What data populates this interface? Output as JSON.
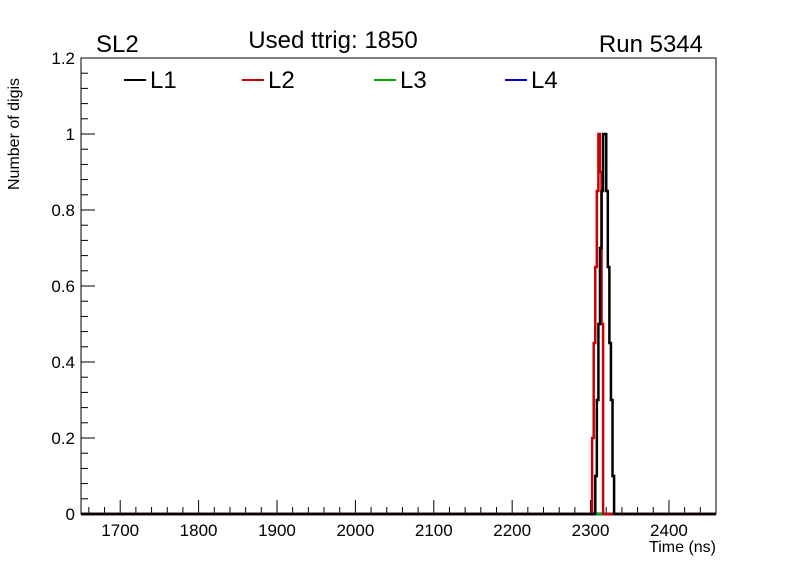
{
  "chart_data": {
    "type": "line",
    "title_left": "SL2",
    "title_center": "Used ttrig: 1850",
    "title_right": "Run 5344",
    "xlabel": "Time (ns)",
    "ylabel": "Number of digis",
    "xlim": [
      1650,
      2460
    ],
    "ylim": [
      0,
      1.2
    ],
    "xticks": [
      1700,
      1800,
      1900,
      2000,
      2100,
      2200,
      2300,
      2400
    ],
    "xtick_labels": [
      "1700",
      "1800",
      "1900",
      "2000",
      "2100",
      "2200",
      "2300",
      "2400"
    ],
    "yticks": [
      0,
      0.2,
      0.4,
      0.6,
      0.8,
      1,
      1.2
    ],
    "ytick_labels": [
      "0",
      "0.2",
      "0.4",
      "0.6",
      "0.8",
      "1",
      "1.2"
    ],
    "legend_position": "top-left",
    "series": [
      {
        "name": "L1",
        "color": "#000000",
        "x": [
          1650,
          2304,
          2306,
          2308,
          2310,
          2312,
          2314,
          2316,
          2318,
          2320,
          2322,
          2324,
          2326,
          2328,
          2330,
          2460
        ],
        "y": [
          0,
          0,
          0.1,
          0.3,
          0.5,
          0.7,
          0.85,
          1.0,
          1.0,
          0.85,
          0.65,
          0.45,
          0.3,
          0.1,
          0,
          0
        ]
      },
      {
        "name": "L2",
        "color": "#cc0000",
        "x": [
          1650,
          2300,
          2302,
          2304,
          2306,
          2308,
          2310,
          2312,
          2314,
          2316,
          2460
        ],
        "y": [
          0,
          0,
          0.2,
          0.45,
          0.65,
          0.85,
          1.0,
          0.9,
          0.5,
          0,
          0
        ]
      },
      {
        "name": "L3",
        "color": "#00aa00",
        "x": [
          1650,
          2460
        ],
        "y": [
          0,
          0
        ]
      },
      {
        "name": "L4",
        "color": "#0000cc",
        "x": [
          1650,
          2460
        ],
        "y": [
          0,
          0
        ]
      }
    ]
  }
}
